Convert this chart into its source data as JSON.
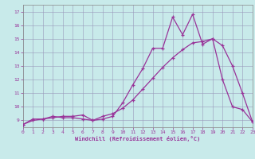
{
  "xlabel": "Windchill (Refroidissement éolien,°C)",
  "bg_color": "#c8eaea",
  "line_color": "#993399",
  "grid_color": "#9999bb",
  "xlim": [
    0,
    23
  ],
  "ylim": [
    8.5,
    17.5
  ],
  "xticks": [
    0,
    1,
    2,
    3,
    4,
    5,
    6,
    7,
    8,
    9,
    10,
    11,
    12,
    13,
    14,
    15,
    16,
    17,
    18,
    19,
    20,
    21,
    22,
    23
  ],
  "yticks": [
    9,
    10,
    11,
    12,
    13,
    14,
    15,
    16,
    17
  ],
  "line1_x": [
    0,
    1,
    2,
    3,
    4,
    5,
    6,
    7,
    8,
    9,
    10,
    11,
    12,
    13,
    14,
    15,
    16,
    17,
    18,
    19,
    20,
    21,
    22,
    23
  ],
  "line1_y": [
    8.7,
    9.1,
    9.1,
    9.3,
    9.2,
    9.2,
    9.1,
    9.0,
    9.1,
    9.3,
    10.3,
    11.6,
    12.8,
    14.3,
    14.3,
    16.6,
    15.3,
    16.8,
    14.6,
    15.0,
    12.0,
    10.0,
    9.8,
    8.9
  ],
  "line2_x": [
    0,
    1,
    2,
    3,
    4,
    5,
    6,
    7,
    8,
    9,
    10,
    11,
    12,
    13,
    14,
    15,
    16,
    17,
    18,
    19,
    20,
    21,
    22,
    23
  ],
  "line2_y": [
    8.7,
    9.0,
    9.1,
    9.2,
    9.3,
    9.3,
    9.4,
    9.0,
    9.3,
    9.5,
    9.9,
    10.5,
    11.3,
    12.1,
    12.9,
    13.6,
    14.2,
    14.7,
    14.8,
    15.0,
    14.5,
    13.0,
    11.0,
    8.9
  ]
}
